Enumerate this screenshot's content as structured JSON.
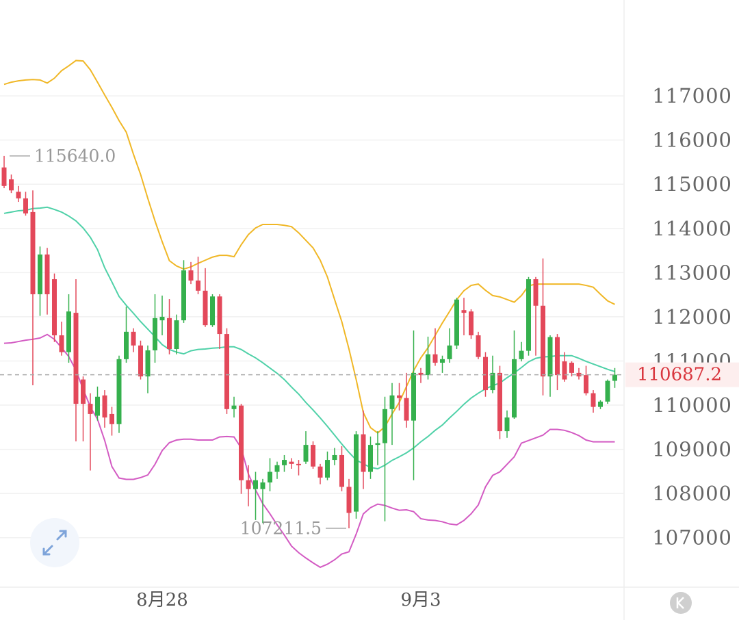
{
  "chart_data": {
    "type": "candlestick",
    "categories": [
      null,
      null,
      null,
      null,
      null,
      null,
      null,
      null,
      null,
      null,
      null,
      null,
      null,
      null,
      null,
      null,
      null,
      null,
      null,
      null,
      null,
      null,
      "8月28",
      null,
      null,
      null,
      null,
      null,
      null,
      null,
      null,
      null,
      null,
      null,
      null,
      null,
      null,
      null,
      null,
      null,
      null,
      null,
      null,
      null,
      null,
      null,
      null,
      null,
      null,
      null,
      null,
      null,
      null,
      null,
      null,
      null,
      null,
      null,
      "9月3",
      null,
      null,
      null,
      null,
      null,
      null,
      null,
      null,
      null,
      null,
      null,
      null,
      null,
      null,
      null,
      null,
      null,
      null,
      null,
      null,
      null,
      null,
      null,
      null,
      null,
      null,
      null
    ],
    "open": [
      115380,
      115110,
      114830,
      114680,
      114370,
      112510,
      113410,
      112850,
      111580,
      111200,
      112090,
      110580,
      110030,
      109760,
      110220,
      109800,
      109570,
      111040,
      111660,
      111350,
      110650,
      111240,
      111920,
      111970,
      111270,
      111920,
      113050,
      112820,
      112590,
      111810,
      112460,
      111610,
      109910,
      109990,
      108300,
      108100,
      108100,
      108250,
      108490,
      108640,
      108720,
      108670,
      108720,
      109100,
      108610,
      108360,
      108760,
      108870,
      108150,
      107590,
      109340,
      108490,
      109100,
      109140,
      109910,
      110220,
      110160,
      109650,
      110730,
      110680,
      111150,
      110960,
      111040,
      111350,
      112150,
      112120,
      111580,
      111090,
      110340,
      110730,
      109410,
      109720,
      111040,
      111230,
      112850,
      112250,
      110650,
      111540,
      110990,
      110960,
      110730,
      110680,
      110270,
      109960,
      110080,
      110550
    ],
    "high": [
      115640,
      115220,
      114960,
      114830,
      114860,
      113590,
      113560,
      112980,
      111890,
      112510,
      112850,
      110650,
      110270,
      110420,
      110340,
      109960,
      111120,
      112230,
      111740,
      111460,
      111350,
      112510,
      112480,
      112400,
      112050,
      113280,
      113240,
      113360,
      113100,
      112510,
      112510,
      111740,
      110190,
      110030,
      108640,
      108490,
      108330,
      108800,
      108720,
      108870,
      108800,
      108760,
      109410,
      109180,
      108670,
      108950,
      109030,
      109070,
      108330,
      109410,
      109880,
      109290,
      109410,
      110190,
      110500,
      110500,
      110730,
      111690,
      110840,
      111550,
      111740,
      111120,
      111740,
      112430,
      112430,
      112170,
      111660,
      111200,
      111120,
      110890,
      109880,
      111690,
      111430,
      112900,
      112900,
      113320,
      111580,
      111610,
      111200,
      110990,
      110840,
      110890,
      110340,
      110110,
      110580,
      110840
    ],
    "low": [
      114910,
      114800,
      114600,
      114290,
      110450,
      112020,
      112050,
      111430,
      111120,
      110960,
      109180,
      109180,
      108520,
      109650,
      109490,
      109310,
      109370,
      110960,
      111200,
      110580,
      110270,
      110960,
      111580,
      111150,
      111150,
      111860,
      112740,
      112510,
      111770,
      111770,
      111270,
      109800,
      109720,
      107990,
      107710,
      107400,
      107330,
      108050,
      108330,
      108490,
      108560,
      108410,
      108670,
      108560,
      108210,
      108300,
      108640,
      108050,
      107211.5,
      107430,
      108100,
      108330,
      108640,
      107370,
      109100,
      109880,
      109490,
      108300,
      110500,
      110580,
      110890,
      110730,
      110960,
      111270,
      111580,
      111500,
      111040,
      110190,
      110270,
      109230,
      109260,
      109690,
      110990,
      111120,
      111120,
      110220,
      110190,
      110340,
      110530,
      110650,
      110580,
      110220,
      109830,
      109910,
      110030,
      110390
    ],
    "close": [
      114960,
      114860,
      114680,
      114340,
      112510,
      113410,
      112510,
      111580,
      111200,
      112120,
      110030,
      110030,
      109800,
      110190,
      109720,
      109570,
      111040,
      111660,
      111350,
      110650,
      111240,
      111970,
      112000,
      111270,
      111920,
      113050,
      112820,
      112590,
      111810,
      112460,
      111610,
      109910,
      109990,
      108300,
      108100,
      108300,
      108250,
      108490,
      108640,
      108760,
      108670,
      108640,
      109100,
      108610,
      108360,
      108760,
      108870,
      108150,
      107560,
      109340,
      108490,
      109100,
      109140,
      109910,
      110220,
      110160,
      109650,
      110730,
      110680,
      111150,
      110960,
      111040,
      111350,
      112390,
      112090,
      111580,
      111090,
      110340,
      110730,
      109410,
      109720,
      111040,
      111230,
      112850,
      112250,
      110650,
      111540,
      110680,
      110580,
      110730,
      110650,
      110270,
      109960,
      110080,
      110550,
      110687.2
    ],
    "up_color": "#35b04d",
    "down_color": "#e3485a",
    "bands": [
      {
        "color": "#f0b726",
        "values": [
          117260,
          117310,
          117340,
          117360,
          117370,
          117360,
          117290,
          117400,
          117570,
          117680,
          117800,
          117790,
          117590,
          117310,
          117020,
          116740,
          116440,
          116180,
          115680,
          115220,
          114680,
          114170,
          113700,
          113270,
          113150,
          113080,
          113130,
          113210,
          113280,
          113350,
          113390,
          113390,
          113360,
          113630,
          113860,
          114010,
          114090,
          114090,
          114090,
          114070,
          114040,
          113900,
          113730,
          113560,
          113280,
          112900,
          112390,
          111890,
          111270,
          110580,
          109830,
          109490,
          109370,
          109510,
          109800,
          110060,
          110420,
          110780,
          111070,
          111300,
          111580,
          111860,
          112120,
          112390,
          112590,
          112710,
          112740,
          112600,
          112480,
          112450,
          112390,
          112330,
          112480,
          112700,
          112740,
          112740,
          112740,
          112740,
          112740,
          112740,
          112740,
          112710,
          112670,
          112510,
          112360,
          112280
        ]
      },
      {
        "color": "#4fd1a8",
        "values": [
          114340,
          114370,
          114400,
          114410,
          114450,
          114460,
          114480,
          114430,
          114370,
          114280,
          114170,
          114010,
          113800,
          113520,
          113110,
          112790,
          112460,
          112260,
          112080,
          111890,
          111720,
          111550,
          111370,
          111260,
          111200,
          111160,
          111230,
          111260,
          111270,
          111290,
          111300,
          111320,
          111320,
          111260,
          111160,
          111070,
          110960,
          110840,
          110720,
          110580,
          110410,
          110250,
          110060,
          109890,
          109710,
          109520,
          109320,
          109120,
          108930,
          108760,
          108670,
          108590,
          108560,
          108640,
          108750,
          108830,
          108920,
          109030,
          109170,
          109290,
          109430,
          109550,
          109710,
          109860,
          110020,
          110160,
          110270,
          110370,
          110440,
          110500,
          110620,
          110730,
          110850,
          110980,
          111060,
          111090,
          111100,
          111120,
          111120,
          111120,
          111060,
          110990,
          110930,
          110870,
          110810,
          110760
        ]
      },
      {
        "color": "#d35bc3",
        "values": [
          111400,
          111410,
          111440,
          111470,
          111490,
          111520,
          111600,
          111490,
          111300,
          111100,
          110790,
          110360,
          109960,
          109680,
          109200,
          108610,
          108350,
          108320,
          108320,
          108360,
          108420,
          108660,
          108970,
          109150,
          109210,
          109230,
          109230,
          109210,
          109210,
          109210,
          109280,
          109290,
          109280,
          109030,
          108440,
          108080,
          107770,
          107540,
          107290,
          107060,
          106810,
          106660,
          106540,
          106430,
          106330,
          106400,
          106500,
          106630,
          106680,
          107080,
          107540,
          107680,
          107760,
          107730,
          107670,
          107620,
          107630,
          107590,
          107430,
          107400,
          107390,
          107360,
          107310,
          107290,
          107390,
          107540,
          107740,
          108150,
          108410,
          108490,
          108660,
          108830,
          109140,
          109200,
          109260,
          109320,
          109450,
          109450,
          109430,
          109380,
          109310,
          109210,
          109170,
          109170,
          109170,
          109170
        ]
      }
    ],
    "high_marker": {
      "value": 115640,
      "label": "115640.0"
    },
    "ylim": [
      105880,
      119170
    ],
    "yticks": [
      107000,
      108000,
      109000,
      110000,
      111000,
      112000,
      113000,
      114000,
      115000,
      116000,
      117000
    ],
    "grid": true
  }
}
